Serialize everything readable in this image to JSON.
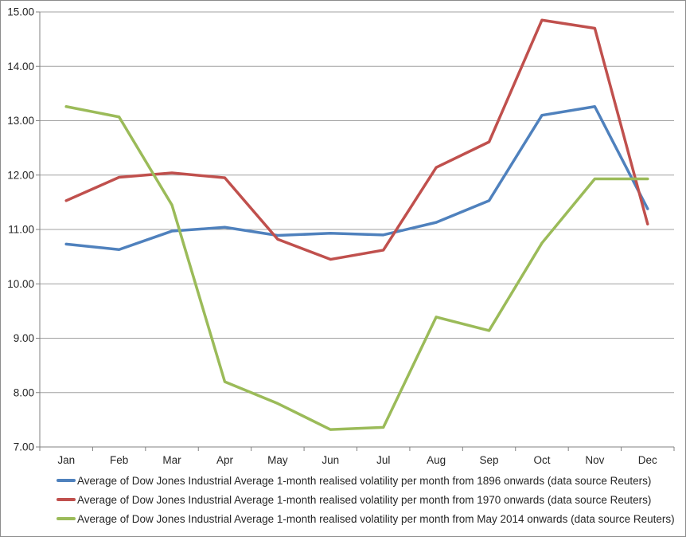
{
  "chart_data": {
    "type": "line",
    "categories": [
      "Jan",
      "Feb",
      "Mar",
      "Apr",
      "May",
      "Jun",
      "Jul",
      "Aug",
      "Sep",
      "Oct",
      "Nov",
      "Dec"
    ],
    "series": [
      {
        "name": "Average of Dow Jones Industrial Average 1-month realised volatility per month from 1896 onwards (data source Reuters)",
        "color": "#4F81BD",
        "values": [
          10.73,
          10.63,
          10.97,
          11.04,
          10.89,
          10.93,
          10.9,
          11.13,
          11.53,
          13.1,
          13.26,
          11.38
        ]
      },
      {
        "name": "Average of Dow Jones Industrial Average 1-month realised volatility per month from 1970 onwards (data source Reuters)",
        "color": "#C0504D",
        "values": [
          11.53,
          11.96,
          12.04,
          11.95,
          10.82,
          10.45,
          10.62,
          12.14,
          12.61,
          14.85,
          14.7,
          11.1
        ]
      },
      {
        "name": "Average of Dow Jones Industrial Average 1-month realised volatility per month from May 2014 onwards (data source Reuters)",
        "color": "#9BBB59",
        "values": [
          13.26,
          13.07,
          11.45,
          8.2,
          7.8,
          7.32,
          7.36,
          9.39,
          9.14,
          10.75,
          11.93,
          11.93
        ]
      }
    ],
    "y_axis": {
      "min": 7,
      "max": 15,
      "step": 1,
      "tick_labels": [
        "15.00",
        "14.00",
        "13.00",
        "12.00",
        "11.00",
        "10.00",
        "9.00",
        "8.00",
        "7.00"
      ]
    },
    "xlabel": "",
    "ylabel": "",
    "title": "",
    "ylim": [
      7,
      15
    ],
    "grid": true,
    "legend_position": "bottom-left"
  },
  "colors": {
    "gridline": "#A0A0A0",
    "axis": "#808080",
    "text": "#262626",
    "background": "#FFFFFF",
    "border": "#8C8C8C"
  }
}
